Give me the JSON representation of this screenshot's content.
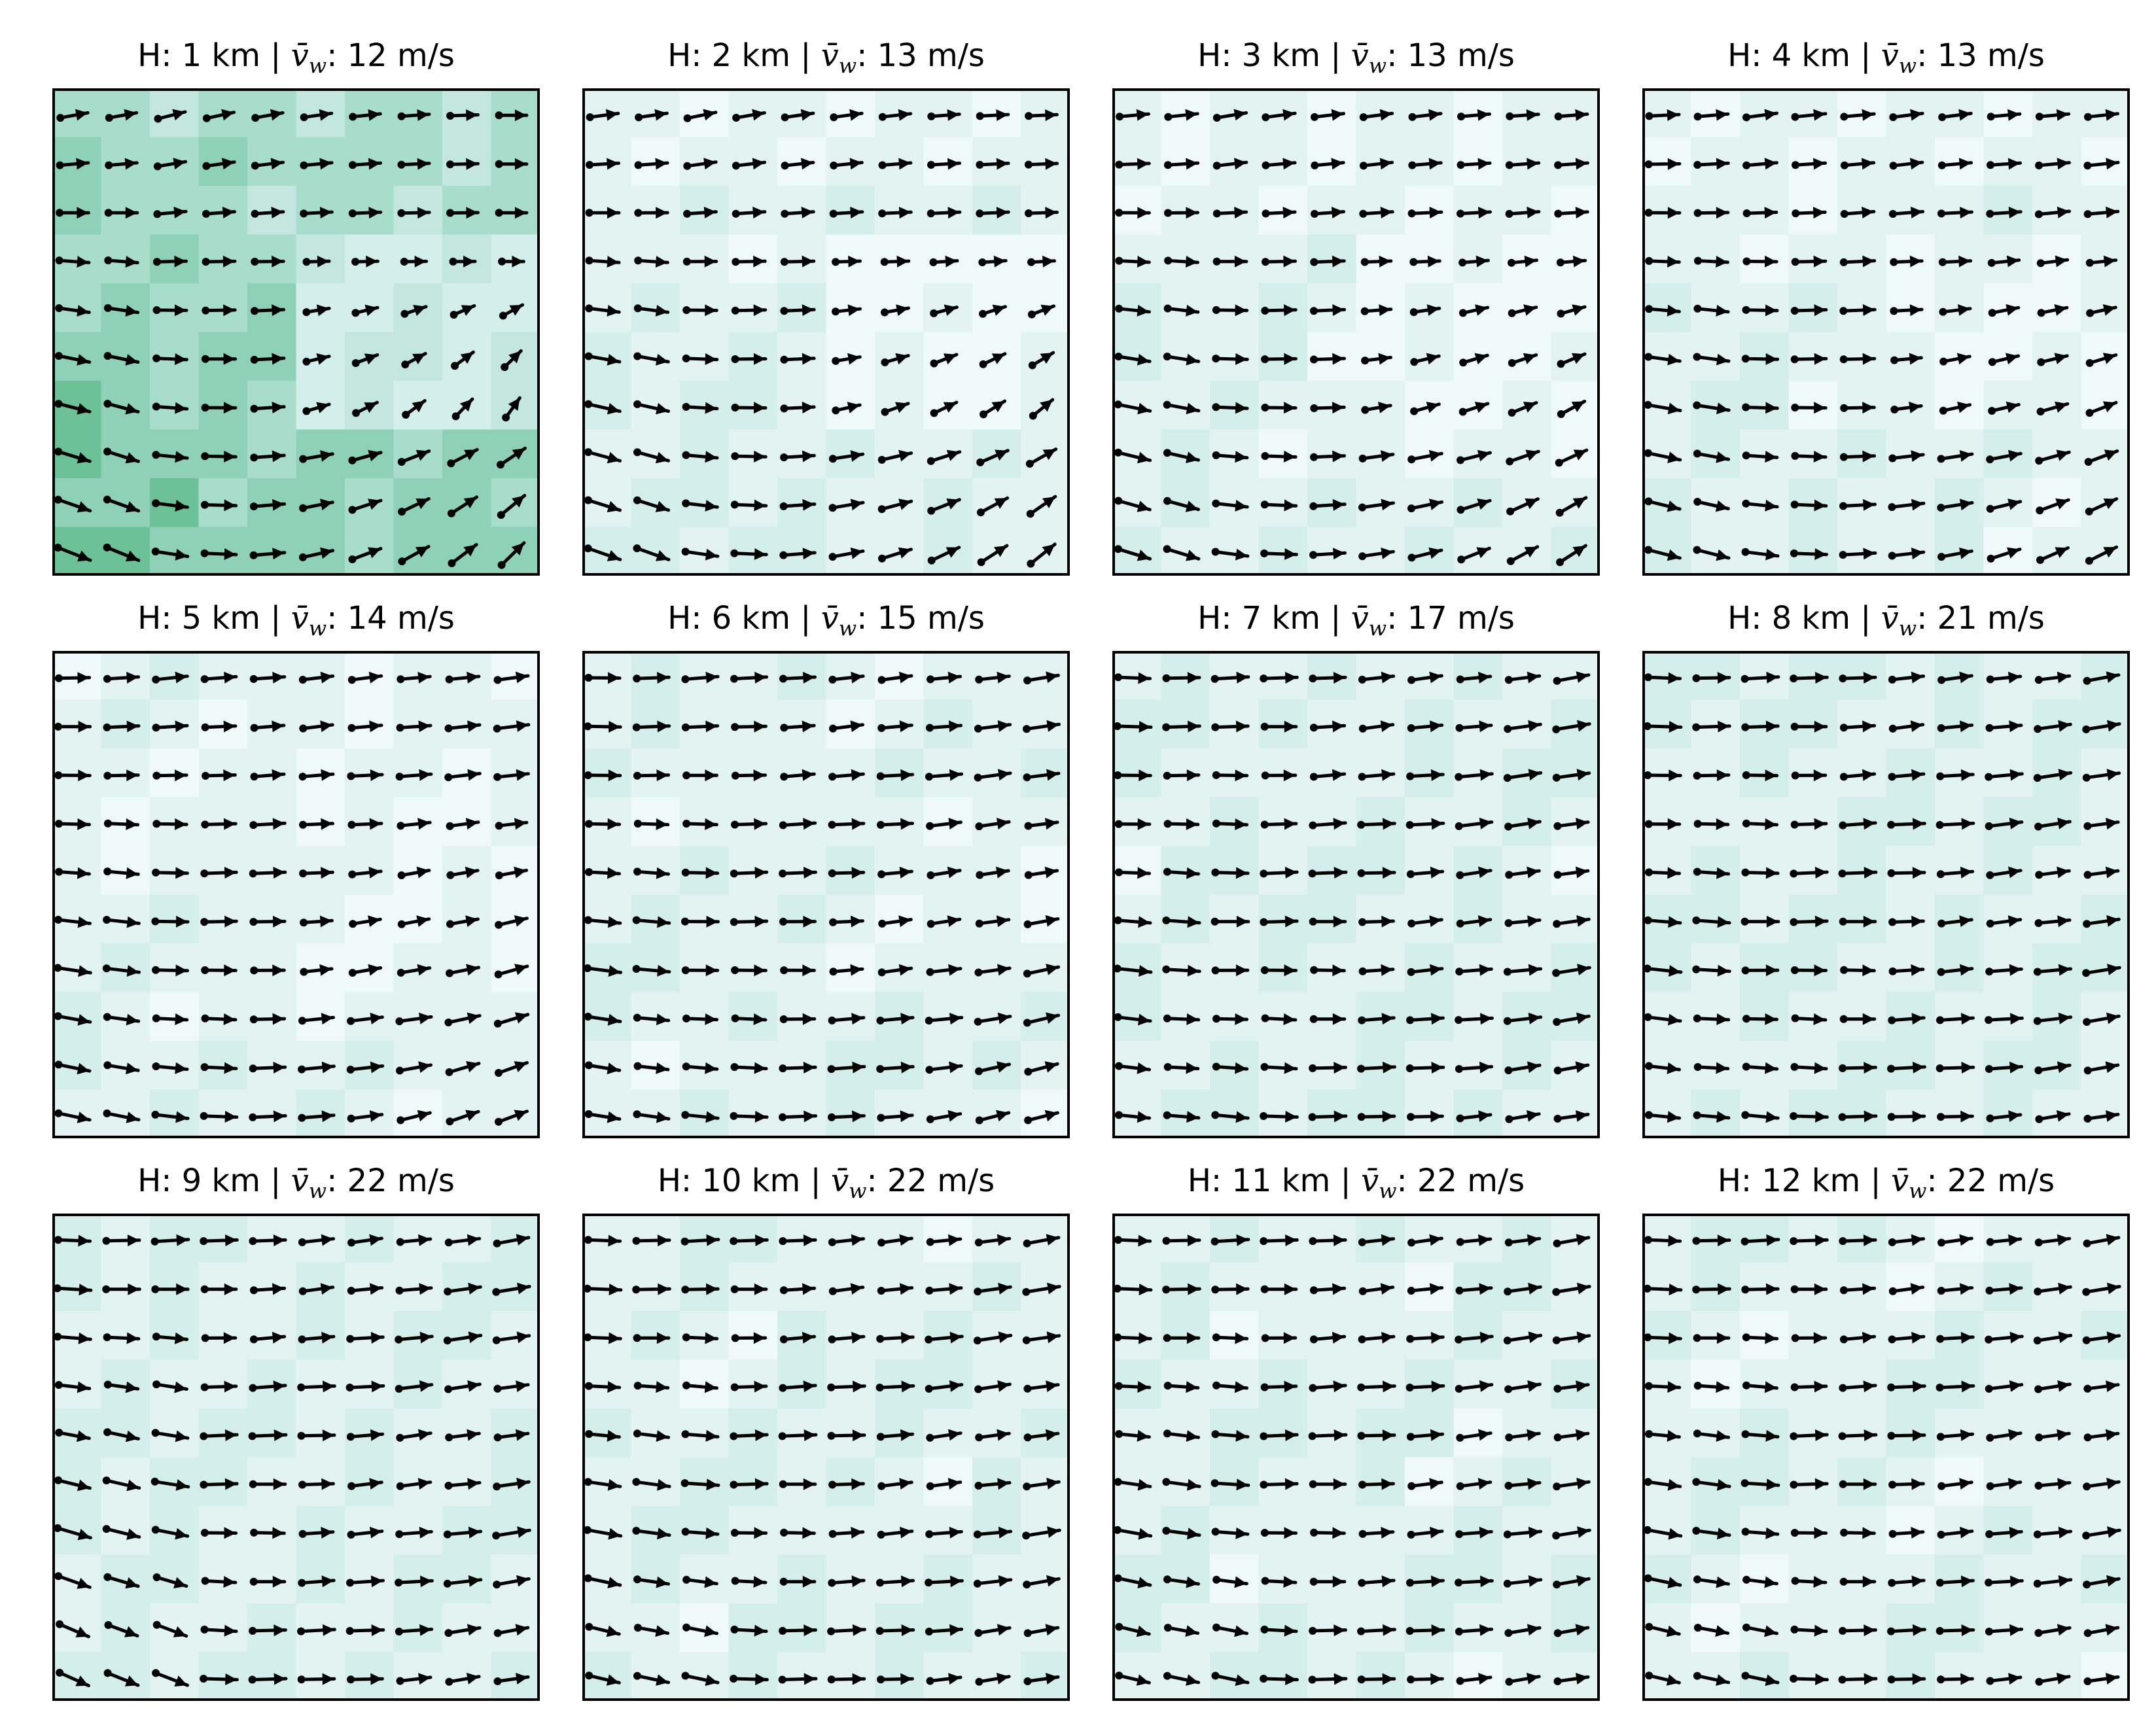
{
  "chart_data": {
    "type": "quiver",
    "title_template": "H: {h} km | v̄w: {v} m/s",
    "grid": {
      "nx": 10,
      "ny": 10
    },
    "colors": {
      "arrow": "#000000",
      "frame": "#000000",
      "fill_levels": [
        "#f0f9fa",
        "#e2f3f2",
        "#d4eeeb",
        "#c3e7df",
        "#a8dccb",
        "#8fd1b8",
        "#6cc196",
        "#4fb37e"
      ]
    },
    "panels": [
      {
        "height_km": 1,
        "mean_speed_ms": 12,
        "label_h": "1",
        "label_v": "12",
        "shade_base": 4.6
      },
      {
        "height_km": 2,
        "mean_speed_ms": 13,
        "label_h": "2",
        "label_v": "13",
        "shade_base": 1.2
      },
      {
        "height_km": 3,
        "mean_speed_ms": 13,
        "label_h": "3",
        "label_v": "13",
        "shade_base": 1.0
      },
      {
        "height_km": 4,
        "mean_speed_ms": 13,
        "label_h": "4",
        "label_v": "13",
        "shade_base": 0.9
      },
      {
        "height_km": 5,
        "mean_speed_ms": 14,
        "label_h": "5",
        "label_v": "14",
        "shade_base": 0.8
      },
      {
        "height_km": 6,
        "mean_speed_ms": 15,
        "label_h": "6",
        "label_v": "15",
        "shade_base": 0.9
      },
      {
        "height_km": 7,
        "mean_speed_ms": 17,
        "label_h": "7",
        "label_v": "17",
        "shade_base": 1.0
      },
      {
        "height_km": 8,
        "mean_speed_ms": 21,
        "label_h": "8",
        "label_v": "21",
        "shade_base": 1.1
      },
      {
        "height_km": 9,
        "mean_speed_ms": 22,
        "label_h": "9",
        "label_v": "22",
        "shade_base": 1.1
      },
      {
        "height_km": 10,
        "mean_speed_ms": 22,
        "label_h": "10",
        "label_v": "22",
        "shade_base": 0.9
      },
      {
        "height_km": 11,
        "mean_speed_ms": 22,
        "label_h": "11",
        "label_v": "22",
        "shade_base": 0.9
      },
      {
        "height_km": 12,
        "mean_speed_ms": 22,
        "label_h": "12",
        "label_v": "22",
        "shade_base": 0.8
      }
    ]
  }
}
